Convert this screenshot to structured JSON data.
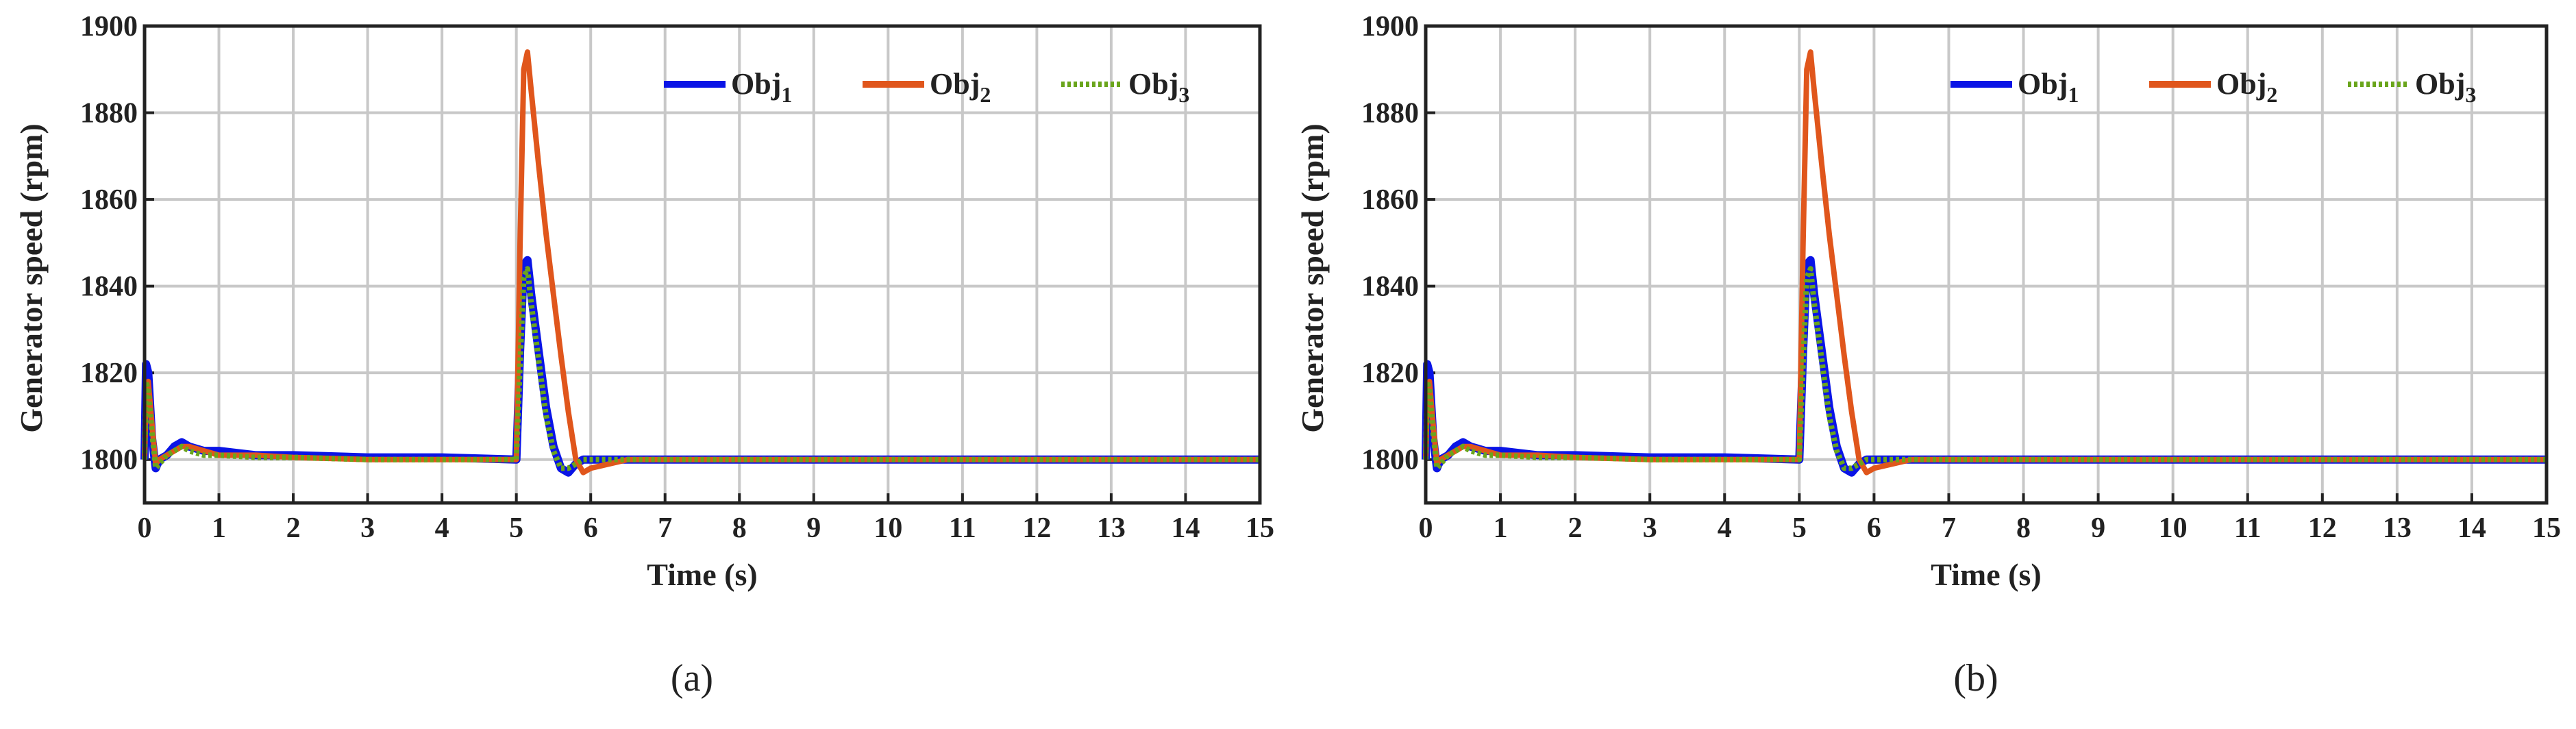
{
  "chart_data": [
    {
      "type": "line",
      "caption": "(a)",
      "xlabel": "Time (s)",
      "ylabel": "Generator speed (rpm)",
      "x": [
        0,
        0.02,
        0.05,
        0.1,
        0.15,
        0.2,
        0.3,
        0.4,
        0.5,
        0.6,
        0.8,
        1,
        1.5,
        2,
        3,
        4,
        5,
        5.05,
        5.1,
        5.15,
        5.2,
        5.3,
        5.4,
        5.5,
        5.6,
        5.7,
        5.8,
        5.9,
        6,
        6.5,
        7,
        8,
        10,
        12,
        15
      ],
      "series": [
        {
          "name": "Obj1",
          "color": "#0a14e6",
          "style": "solid",
          "values": [
            1800,
            1822,
            1820,
            1805,
            1798,
            1800,
            1801,
            1803,
            1804,
            1803,
            1802,
            1802,
            1801,
            1801,
            1800.5,
            1800.5,
            1800,
            1825,
            1845,
            1846,
            1838,
            1825,
            1812,
            1803,
            1798,
            1797,
            1799,
            1800,
            1800,
            1800,
            1800,
            1800,
            1800,
            1800,
            1800
          ]
        },
        {
          "name": "Obj2",
          "color": "#e0561c",
          "style": "solid",
          "values": [
            1800,
            1815,
            1818,
            1808,
            1799,
            1800,
            1801,
            1802,
            1803,
            1803,
            1802,
            1801,
            1801,
            1800.5,
            1800,
            1800,
            1800,
            1850,
            1890,
            1894,
            1885,
            1868,
            1852,
            1838,
            1824,
            1811,
            1800,
            1797,
            1798,
            1800,
            1800,
            1800,
            1800,
            1800,
            1800
          ]
        },
        {
          "name": "Obj3",
          "color": "#6aa51c",
          "style": "dotted",
          "values": [
            1800,
            1818,
            1816,
            1806,
            1798,
            1799,
            1801,
            1802,
            1803,
            1802,
            1801,
            1801,
            1800.5,
            1800.5,
            1800,
            1800,
            1800,
            1822,
            1842,
            1844,
            1836,
            1823,
            1810,
            1802,
            1798,
            1798,
            1799,
            1800,
            1800,
            1800,
            1800,
            1800,
            1800,
            1800,
            1800
          ]
        }
      ],
      "xlim": [
        0,
        15
      ],
      "xticks": [
        0,
        1,
        2,
        3,
        4,
        5,
        6,
        7,
        8,
        9,
        10,
        11,
        12,
        13,
        14,
        15
      ],
      "ylim": [
        1790,
        1900
      ],
      "yticks": [
        1800,
        1820,
        1840,
        1860,
        1880,
        1900
      ],
      "grid": true,
      "legend": "upper right"
    },
    {
      "type": "line",
      "caption": "(b)",
      "xlabel": "Time (s)",
      "ylabel": "Generator speed (rpm)",
      "x": [
        0,
        0.02,
        0.05,
        0.1,
        0.15,
        0.2,
        0.3,
        0.4,
        0.5,
        0.6,
        0.8,
        1,
        1.5,
        2,
        3,
        4,
        5,
        5.05,
        5.1,
        5.15,
        5.2,
        5.3,
        5.4,
        5.5,
        5.6,
        5.7,
        5.8,
        5.9,
        6,
        6.5,
        7,
        8,
        10,
        12,
        15
      ],
      "series": [
        {
          "name": "Obj1",
          "color": "#0a14e6",
          "style": "solid",
          "values": [
            1800,
            1822,
            1820,
            1805,
            1798,
            1800,
            1801,
            1803,
            1804,
            1803,
            1802,
            1802,
            1801,
            1801,
            1800.5,
            1800.5,
            1800,
            1825,
            1845,
            1846,
            1838,
            1825,
            1812,
            1803,
            1798,
            1797,
            1799,
            1800,
            1800,
            1800,
            1800,
            1800,
            1800,
            1800,
            1800
          ]
        },
        {
          "name": "Obj2",
          "color": "#e0561c",
          "style": "solid",
          "values": [
            1800,
            1815,
            1818,
            1808,
            1799,
            1800,
            1801,
            1802,
            1803,
            1803,
            1802,
            1801,
            1801,
            1800.5,
            1800,
            1800,
            1800,
            1850,
            1890,
            1894,
            1885,
            1868,
            1852,
            1838,
            1824,
            1811,
            1800,
            1797,
            1798,
            1800,
            1800,
            1800,
            1800,
            1800,
            1800
          ]
        },
        {
          "name": "Obj3",
          "color": "#6aa51c",
          "style": "dotted",
          "values": [
            1800,
            1818,
            1816,
            1806,
            1798,
            1799,
            1801,
            1802,
            1803,
            1802,
            1801,
            1801,
            1800.5,
            1800.5,
            1800,
            1800,
            1800,
            1822,
            1842,
            1844,
            1836,
            1823,
            1810,
            1802,
            1798,
            1798,
            1799,
            1800,
            1800,
            1800,
            1800,
            1800,
            1800,
            1800,
            1800
          ]
        }
      ],
      "xlim": [
        0,
        15
      ],
      "xticks": [
        0,
        1,
        2,
        3,
        4,
        5,
        6,
        7,
        8,
        9,
        10,
        11,
        12,
        13,
        14,
        15
      ],
      "ylim": [
        1790,
        1900
      ],
      "yticks": [
        1800,
        1820,
        1840,
        1860,
        1880,
        1900
      ],
      "grid": true,
      "legend": "upper right"
    }
  ]
}
